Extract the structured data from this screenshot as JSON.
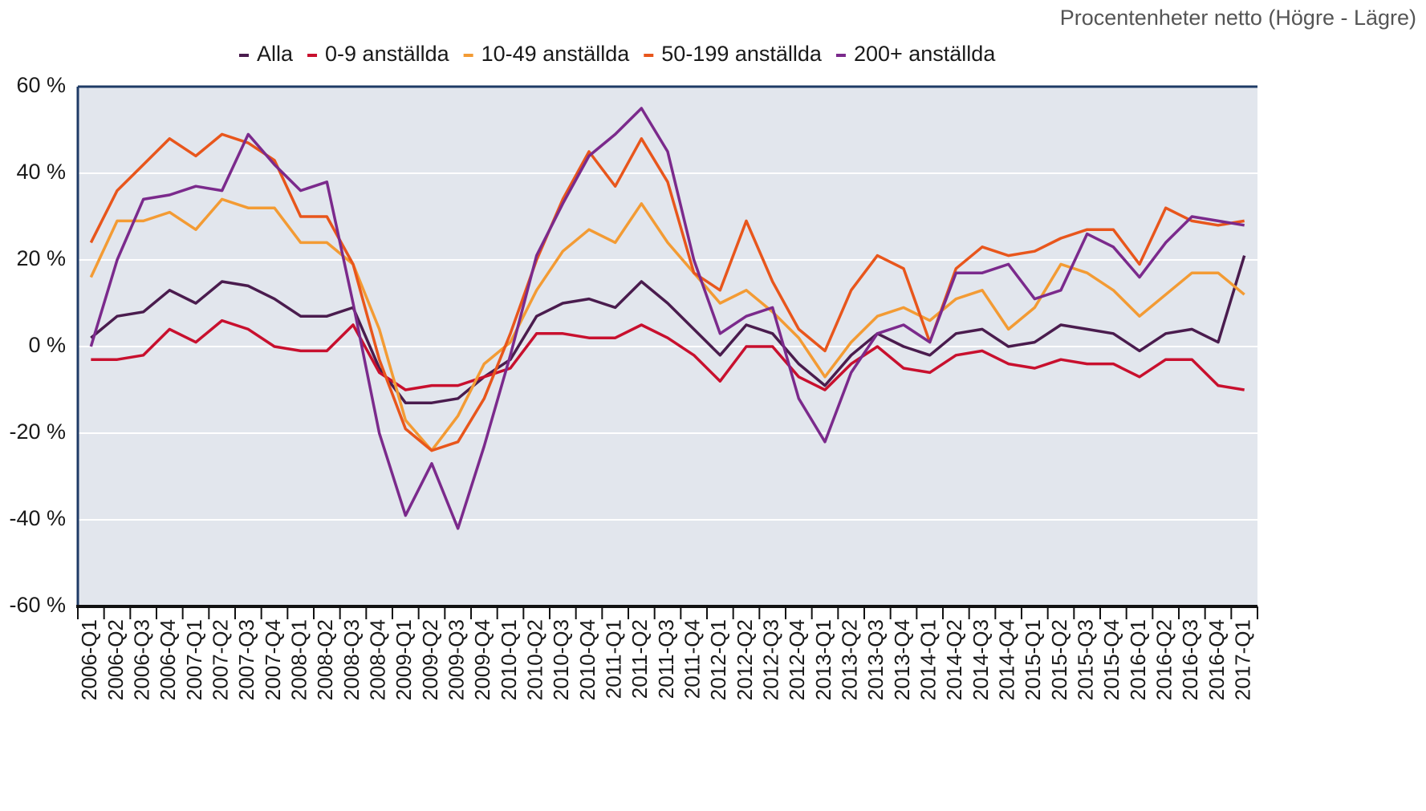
{
  "chart_data": {
    "type": "line",
    "unit_label": "Procentenheter netto (Högre - Lägre)",
    "categories": [
      "2006-Q1",
      "2006-Q2",
      "2006-Q3",
      "2006-Q4",
      "2007-Q1",
      "2007-Q2",
      "2007-Q3",
      "2007-Q4",
      "2008-Q1",
      "2008-Q2",
      "2008-Q3",
      "2008-Q4",
      "2009-Q1",
      "2009-Q2",
      "2009-Q3",
      "2009-Q4",
      "2010-Q1",
      "2010-Q2",
      "2010-Q3",
      "2010-Q4",
      "2011-Q1",
      "2011-Q2",
      "2011-Q3",
      "2011-Q4",
      "2012-Q1",
      "2012-Q2",
      "2012-Q3",
      "2012-Q4",
      "2013-Q1",
      "2013-Q2",
      "2013-Q3",
      "2013-Q4",
      "2014-Q1",
      "2014-Q2",
      "2014-Q3",
      "2014-Q4",
      "2015-Q1",
      "2015-Q2",
      "2015-Q3",
      "2015-Q4",
      "2016-Q1",
      "2016-Q2",
      "2016-Q3",
      "2016-Q4",
      "2017-Q1"
    ],
    "series": [
      {
        "name": "Alla",
        "color": "#4a1c4e",
        "values": [
          2,
          7,
          8,
          13,
          10,
          15,
          14,
          11,
          7,
          7,
          9,
          -5,
          -13,
          -13,
          -12,
          -7,
          -3,
          7,
          10,
          11,
          9,
          15,
          10,
          4,
          -2,
          5,
          3,
          -4,
          -9,
          -2,
          3,
          0,
          -2,
          3,
          4,
          0,
          1,
          5,
          4,
          3,
          -1,
          3,
          4,
          1,
          21
        ]
      },
      {
        "name": "0-9 anställda",
        "color": "#c8102e",
        "values": [
          -3,
          -3,
          -2,
          4,
          1,
          6,
          4,
          0,
          -1,
          -1,
          5,
          -6,
          -10,
          -9,
          -9,
          -7,
          -5,
          3,
          3,
          2,
          2,
          5,
          2,
          -2,
          -8,
          0,
          0,
          -7,
          -10,
          -4,
          0,
          -5,
          -6,
          -2,
          -1,
          -4,
          -5,
          -3,
          -4,
          -4,
          -7,
          -3,
          -3,
          -9,
          -10
        ]
      },
      {
        "name": "10-49 anställda",
        "color": "#f39b34",
        "values": [
          16,
          29,
          29,
          31,
          27,
          34,
          32,
          32,
          24,
          24,
          19,
          4,
          -17,
          -24,
          -16,
          -4,
          1,
          13,
          22,
          27,
          24,
          33,
          24,
          17,
          10,
          13,
          8,
          2,
          -7,
          1,
          7,
          9,
          6,
          11,
          13,
          4,
          9,
          19,
          17,
          13,
          7,
          12,
          17,
          17,
          12
        ]
      },
      {
        "name": "50-199 anställda",
        "color": "#e8561c",
        "values": [
          24,
          36,
          42,
          48,
          44,
          49,
          47,
          43,
          30,
          30,
          19,
          -3,
          -19,
          -24,
          -22,
          -12,
          3,
          20,
          34,
          45,
          37,
          48,
          38,
          17,
          13,
          29,
          15,
          4,
          -1,
          13,
          21,
          18,
          1,
          18,
          23,
          21,
          22,
          25,
          27,
          27,
          19,
          32,
          29,
          28,
          29
        ]
      },
      {
        "name": "200+ anställda",
        "color": "#7b2a8c",
        "values": [
          0,
          20,
          34,
          35,
          37,
          36,
          49,
          42,
          36,
          38,
          10,
          -20,
          -39,
          -27,
          -42,
          -23,
          -2,
          21,
          33,
          44,
          49,
          55,
          45,
          20,
          3,
          7,
          9,
          -12,
          -22,
          -6,
          3,
          5,
          1,
          17,
          17,
          19,
          11,
          13,
          26,
          23,
          16,
          24,
          30,
          29,
          28
        ]
      }
    ],
    "ylim": [
      -60,
      60
    ],
    "yticks": [
      {
        "value": -60,
        "label": "-60 %"
      },
      {
        "value": -40,
        "label": "-40 %"
      },
      {
        "value": -20,
        "label": "-20 %"
      },
      {
        "value": 0,
        "label": "0 %"
      },
      {
        "value": 20,
        "label": "20 %"
      },
      {
        "value": 40,
        "label": "40 %"
      },
      {
        "value": 60,
        "label": "60 %"
      }
    ],
    "grid": true,
    "legend": "top"
  }
}
